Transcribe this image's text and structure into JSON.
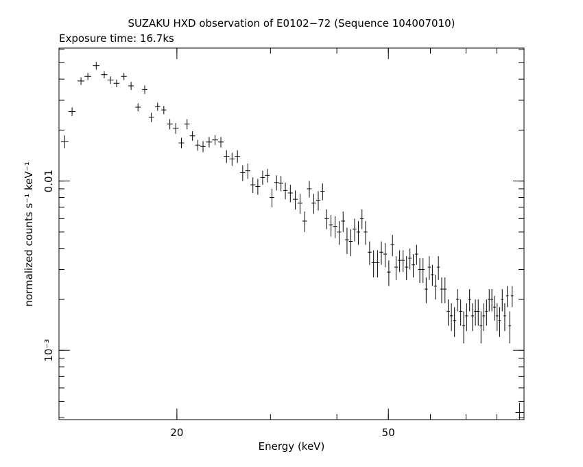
{
  "chart_data": {
    "type": "scatter",
    "title": "SUZAKU HXD observation of E0102−72 (Sequence 104007010)",
    "subtitle": "Exposure time: 16.7ks",
    "xlabel": "Energy (keV)",
    "ylabel": "normalized counts s⁻¹ keV⁻¹",
    "x_scale": "log",
    "y_scale": "log",
    "xlim": [
      12.0,
      90.0
    ],
    "ylim": [
      0.00039,
      0.061
    ],
    "x_ticks": [
      {
        "value": 20,
        "label": "20"
      },
      {
        "value": 50,
        "label": "50"
      }
    ],
    "y_ticks": [
      {
        "value": 0.01,
        "label": "0.01"
      },
      {
        "value": 0.001,
        "label": "10⁻³"
      }
    ],
    "grid": false,
    "series": [
      {
        "points": [
          [
            12.3,
            0.0171,
            0.2,
            0.0015
          ],
          [
            12.7,
            0.0257,
            0.2,
            0.0015
          ],
          [
            13.2,
            0.039,
            0.2,
            0.002
          ],
          [
            13.6,
            0.0415,
            0.2,
            0.002
          ],
          [
            14.1,
            0.048,
            0.2,
            0.0025
          ],
          [
            14.6,
            0.0425,
            0.2,
            0.002
          ],
          [
            15.0,
            0.0395,
            0.2,
            0.002
          ],
          [
            15.4,
            0.0378,
            0.2,
            0.002
          ],
          [
            15.9,
            0.0415,
            0.2,
            0.002
          ],
          [
            16.4,
            0.0365,
            0.2,
            0.002
          ],
          [
            16.9,
            0.0273,
            0.2,
            0.0015
          ],
          [
            17.4,
            0.0347,
            0.2,
            0.002
          ],
          [
            17.9,
            0.0238,
            0.2,
            0.0015
          ],
          [
            18.4,
            0.0275,
            0.2,
            0.0015
          ],
          [
            18.9,
            0.0263,
            0.2,
            0.0015
          ],
          [
            19.4,
            0.0217,
            0.25,
            0.0015
          ],
          [
            19.9,
            0.0205,
            0.25,
            0.0015
          ],
          [
            20.4,
            0.0168,
            0.25,
            0.0012
          ],
          [
            20.9,
            0.0217,
            0.25,
            0.0015
          ],
          [
            21.4,
            0.0185,
            0.25,
            0.0012
          ],
          [
            21.9,
            0.0163,
            0.25,
            0.0012
          ],
          [
            22.4,
            0.016,
            0.25,
            0.0012
          ],
          [
            23.0,
            0.017,
            0.3,
            0.0012
          ],
          [
            23.6,
            0.0175,
            0.3,
            0.0012
          ],
          [
            24.2,
            0.017,
            0.3,
            0.0012
          ],
          [
            24.8,
            0.014,
            0.3,
            0.0012
          ],
          [
            25.4,
            0.0135,
            0.3,
            0.0012
          ],
          [
            26.0,
            0.014,
            0.3,
            0.0012
          ],
          [
            26.6,
            0.0112,
            0.3,
            0.0012
          ],
          [
            27.2,
            0.0115,
            0.3,
            0.0012
          ],
          [
            27.8,
            0.0095,
            0.3,
            0.001
          ],
          [
            28.4,
            0.0093,
            0.3,
            0.001
          ],
          [
            29.0,
            0.0105,
            0.3,
            0.001
          ],
          [
            29.6,
            0.0108,
            0.3,
            0.001
          ],
          [
            30.2,
            0.008,
            0.3,
            0.001
          ],
          [
            30.8,
            0.0098,
            0.3,
            0.001
          ],
          [
            31.4,
            0.0097,
            0.3,
            0.001
          ],
          [
            32.0,
            0.0088,
            0.3,
            0.001
          ],
          [
            32.7,
            0.0085,
            0.35,
            0.001
          ],
          [
            33.4,
            0.0078,
            0.35,
            0.001
          ],
          [
            34.1,
            0.0074,
            0.35,
            0.001
          ],
          [
            34.8,
            0.0058,
            0.35,
            0.0008
          ],
          [
            35.5,
            0.009,
            0.35,
            0.001
          ],
          [
            36.2,
            0.0074,
            0.35,
            0.001
          ],
          [
            36.9,
            0.0077,
            0.35,
            0.001
          ],
          [
            37.6,
            0.0087,
            0.35,
            0.001
          ],
          [
            38.3,
            0.006,
            0.35,
            0.0008
          ],
          [
            39.0,
            0.0055,
            0.35,
            0.0008
          ],
          [
            39.7,
            0.0054,
            0.35,
            0.0008
          ],
          [
            40.4,
            0.005,
            0.35,
            0.0008
          ],
          [
            41.1,
            0.0058,
            0.35,
            0.0008
          ],
          [
            41.8,
            0.0045,
            0.35,
            0.0008
          ],
          [
            42.5,
            0.0044,
            0.35,
            0.0008
          ],
          [
            43.2,
            0.0052,
            0.35,
            0.0008
          ],
          [
            43.9,
            0.005,
            0.35,
            0.0008
          ],
          [
            44.6,
            0.006,
            0.35,
            0.0008
          ],
          [
            45.3,
            0.005,
            0.35,
            0.0008
          ],
          [
            46.1,
            0.0038,
            0.4,
            0.0006
          ],
          [
            46.9,
            0.0033,
            0.4,
            0.0006
          ],
          [
            47.7,
            0.0033,
            0.4,
            0.0006
          ],
          [
            48.5,
            0.0038,
            0.4,
            0.0006
          ],
          [
            49.3,
            0.0037,
            0.4,
            0.0006
          ],
          [
            50.1,
            0.0029,
            0.4,
            0.0005
          ],
          [
            50.9,
            0.0042,
            0.4,
            0.0006
          ],
          [
            51.7,
            0.0031,
            0.4,
            0.0005
          ],
          [
            52.5,
            0.0034,
            0.4,
            0.0005
          ],
          [
            53.3,
            0.0034,
            0.4,
            0.0005
          ],
          [
            54.1,
            0.0031,
            0.4,
            0.0005
          ],
          [
            54.9,
            0.0035,
            0.4,
            0.0005
          ],
          [
            55.7,
            0.0032,
            0.4,
            0.0005
          ],
          [
            56.5,
            0.0037,
            0.4,
            0.0005
          ],
          [
            57.3,
            0.003,
            0.4,
            0.0005
          ],
          [
            58.1,
            0.003,
            0.4,
            0.0005
          ],
          [
            58.9,
            0.0023,
            0.4,
            0.0004
          ],
          [
            59.7,
            0.0031,
            0.4,
            0.0005
          ],
          [
            60.5,
            0.0028,
            0.4,
            0.0004
          ],
          [
            61.3,
            0.0024,
            0.4,
            0.0004
          ],
          [
            62.1,
            0.0031,
            0.4,
            0.0005
          ],
          [
            63.0,
            0.0023,
            0.45,
            0.0004
          ],
          [
            63.9,
            0.0023,
            0.45,
            0.0004
          ],
          [
            64.8,
            0.0017,
            0.45,
            0.0003
          ],
          [
            65.7,
            0.0016,
            0.45,
            0.0003
          ],
          [
            66.6,
            0.0015,
            0.45,
            0.0003
          ],
          [
            67.5,
            0.002,
            0.45,
            0.0003
          ],
          [
            68.4,
            0.0017,
            0.45,
            0.0003
          ],
          [
            69.3,
            0.0014,
            0.45,
            0.0003
          ],
          [
            70.2,
            0.0016,
            0.45,
            0.0003
          ],
          [
            71.1,
            0.002,
            0.45,
            0.0003
          ],
          [
            72.0,
            0.0016,
            0.45,
            0.0003
          ],
          [
            72.9,
            0.0017,
            0.45,
            0.0003
          ],
          [
            73.8,
            0.0017,
            0.45,
            0.0003
          ],
          [
            74.7,
            0.0014,
            0.45,
            0.0003
          ],
          [
            75.6,
            0.0016,
            0.45,
            0.0003
          ],
          [
            76.5,
            0.0017,
            0.45,
            0.0003
          ],
          [
            77.4,
            0.002,
            0.45,
            0.0003
          ],
          [
            78.3,
            0.002,
            0.45,
            0.0003
          ],
          [
            79.2,
            0.0018,
            0.45,
            0.0003
          ],
          [
            80.1,
            0.0016,
            0.45,
            0.0003
          ],
          [
            81.0,
            0.0015,
            0.45,
            0.0003
          ],
          [
            81.9,
            0.002,
            0.45,
            0.0003
          ],
          [
            82.8,
            0.0016,
            0.45,
            0.0003
          ],
          [
            83.7,
            0.0021,
            0.45,
            0.0003
          ],
          [
            84.6,
            0.0014,
            0.45,
            0.0003
          ],
          [
            85.5,
            0.0021,
            0.45,
            0.0003
          ],
          [
            88.3,
            0.00043,
            1.6,
            6e-05
          ]
        ]
      }
    ]
  }
}
